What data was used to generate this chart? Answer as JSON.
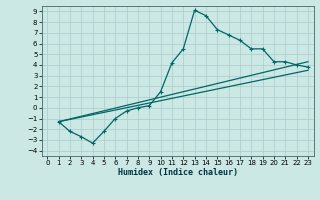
{
  "title": "",
  "xlabel": "Humidex (Indice chaleur)",
  "background_color": "#cce8e4",
  "grid_color": "#aacccc",
  "line_color": "#006666",
  "xlim": [
    -0.5,
    23.5
  ],
  "ylim": [
    -4.5,
    9.5
  ],
  "xticks": [
    0,
    1,
    2,
    3,
    4,
    5,
    6,
    7,
    8,
    9,
    10,
    11,
    12,
    13,
    14,
    15,
    16,
    17,
    18,
    19,
    20,
    21,
    22,
    23
  ],
  "yticks": [
    -4,
    -3,
    -2,
    -1,
    0,
    1,
    2,
    3,
    4,
    5,
    6,
    7,
    8,
    9
  ],
  "series0_x": [
    1,
    2,
    3,
    4,
    5,
    6,
    7,
    8,
    9,
    10,
    11,
    12,
    13,
    14,
    15,
    16,
    17,
    18,
    19,
    20,
    21,
    22,
    23
  ],
  "series0_y": [
    -1.3,
    -2.2,
    -2.7,
    -3.3,
    -2.2,
    -1.0,
    -0.3,
    0.0,
    0.2,
    1.5,
    4.2,
    5.5,
    9.1,
    8.6,
    7.3,
    6.8,
    6.3,
    5.5,
    5.5,
    4.3,
    4.3,
    4.0,
    3.8
  ],
  "line1_x": [
    1,
    23
  ],
  "line1_y": [
    -1.3,
    4.3
  ],
  "line2_x": [
    1,
    23
  ],
  "line2_y": [
    -1.3,
    3.5
  ],
  "line3_x": [
    1,
    23
  ],
  "line3_y": [
    -1.3,
    3.8
  ]
}
